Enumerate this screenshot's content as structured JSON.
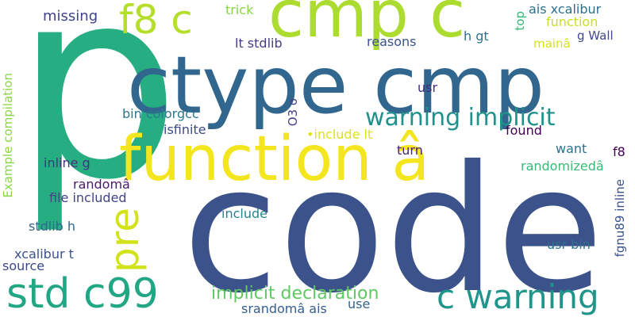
{
  "words": [
    {
      "text": "p",
      "color": "#26ad81"
    },
    {
      "text": "code",
      "color": "#3b528b"
    },
    {
      "text": "ctype cmp",
      "color": "#31668e"
    },
    {
      "text": "cmp c",
      "color": "#addc30"
    },
    {
      "text": "function â",
      "color": "#f4e61e"
    },
    {
      "text": "f8 c",
      "color": "#b5de2b"
    },
    {
      "text": "std c99",
      "color": "#22a784"
    },
    {
      "text": "c warning",
      "color": "#1f958b"
    },
    {
      "text": "warning implicit",
      "color": "#21918c"
    },
    {
      "text": "pre",
      "color": "#d2e21b"
    },
    {
      "text": "implicit declaration",
      "color": "#5ec962"
    },
    {
      "text": "missing",
      "color": "#404387"
    },
    {
      "text": "trick",
      "color": "#86d549"
    },
    {
      "text": "ais xcalibur",
      "color": "#2d708e"
    },
    {
      "text": "function",
      "color": "#c8e020"
    },
    {
      "text": "top",
      "color": "#35b779"
    },
    {
      "text": "h gt",
      "color": "#2c738e"
    },
    {
      "text": "mainâ",
      "color": "#d8e219"
    },
    {
      "text": "g Wall",
      "color": "#3f4889"
    },
    {
      "text": "lt stdlib",
      "color": "#433e85"
    },
    {
      "text": "reasons",
      "color": "#3b528b"
    },
    {
      "text": "usr",
      "color": "#472d7b"
    },
    {
      "text": "O3 o",
      "color": "#433e85"
    },
    {
      "text": "bin colorgcc",
      "color": "#2a788e"
    },
    {
      "text": "isfinite",
      "color": "#3e4a89"
    },
    {
      "text": "•include lt",
      "color": "#dde318"
    },
    {
      "text": "found",
      "color": "#440154"
    },
    {
      "text": "turn",
      "color": "#482576"
    },
    {
      "text": "want",
      "color": "#2c728e"
    },
    {
      "text": "f8",
      "color": "#440154"
    },
    {
      "text": "randomizedâ",
      "color": "#3aba76"
    },
    {
      "text": "inline g",
      "color": "#46327e"
    },
    {
      "text": "randomâ",
      "color": "#481a6c"
    },
    {
      "text": "file included",
      "color": "#414487"
    },
    {
      "text": "include",
      "color": "#25858e"
    },
    {
      "text": "Example compilation",
      "color": "#8bd646"
    },
    {
      "text": "stdlib h",
      "color": "#31688e"
    },
    {
      "text": "xcalibur t",
      "color": "#3b528b"
    },
    {
      "text": "source",
      "color": "#3e4989"
    },
    {
      "text": "usr bin",
      "color": "#2d718e"
    },
    {
      "text": "fgnu89 inline",
      "color": "#3b528b"
    },
    {
      "text": "srandomâ ais",
      "color": "#355f8d"
    },
    {
      "text": "use",
      "color": "#33638d"
    }
  ]
}
